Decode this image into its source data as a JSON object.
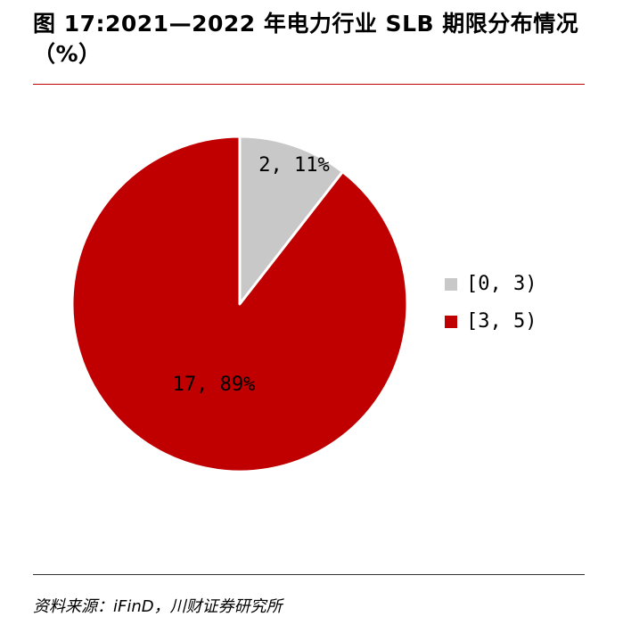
{
  "title": "图 17:2021—2022 年电力行业 SLB 期限分布情况（%）",
  "source": "资料来源：iFinD，川财证券研究所",
  "chart_data": {
    "type": "pie",
    "title": "图 17:2021—2022 年电力行业 SLB 期限分布情况（%）",
    "categories": [
      "[0, 3)",
      "[3, 5)"
    ],
    "values": [
      2,
      17
    ],
    "percentages": [
      11,
      89
    ],
    "data_labels": [
      "2, 11%",
      "17, 89%"
    ],
    "colors": [
      "#c8c8c8",
      "#c00000"
    ],
    "legend_position": "right"
  }
}
